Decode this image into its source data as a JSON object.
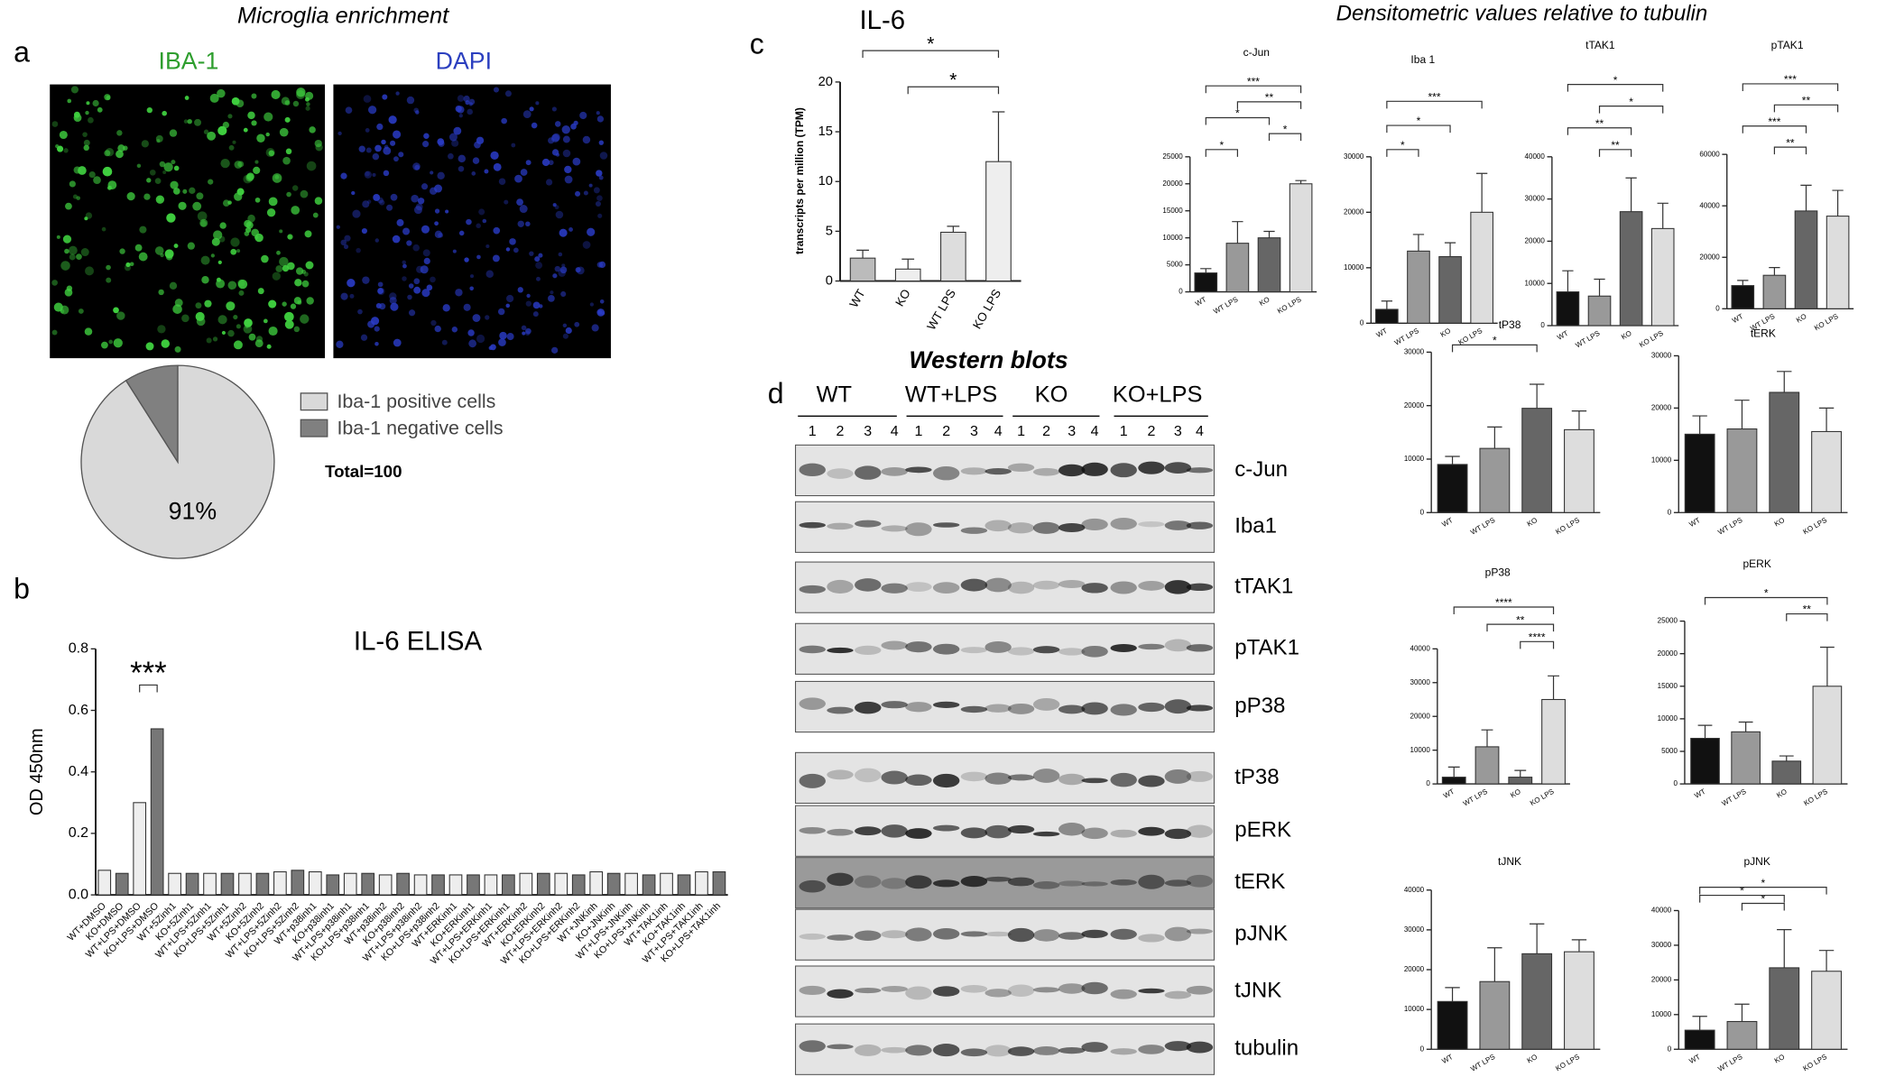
{
  "panels": {
    "a": {
      "label": "a",
      "title": "Microglia enrichment",
      "images": [
        "IBA-1",
        "DAPI"
      ]
    },
    "b": {
      "label": "b"
    },
    "c": {
      "label": "c",
      "title": "Densitometric values relative to tubulin"
    },
    "d": {
      "label": "d",
      "title": "Western blots",
      "groups": [
        "WT",
        "WT+LPS",
        "KO",
        "KO+LPS"
      ],
      "lanes": [
        "1",
        "2",
        "3",
        "4"
      ],
      "blots": [
        "c-Jun",
        "Iba1",
        "tTAK1",
        "pTAK1",
        "pP38",
        "tP38",
        "pERK",
        "tERK",
        "pJNK",
        "tJNK",
        "tubulin"
      ]
    }
  },
  "chart_data": [
    {
      "type": "pie",
      "categories": [
        "Iba-1 positive cells",
        "Iba-1 negative cells"
      ],
      "values": [
        91,
        9
      ],
      "value_labels": [
        "91%",
        null
      ],
      "colors": [
        "#d9d9d9",
        "#808080"
      ],
      "annotation": "Total=100"
    },
    {
      "type": "bar",
      "title": "IL-6 ELISA",
      "ylabel": "OD 450nm",
      "categories": [
        "WT+DMSO",
        "KO+DMSO",
        "WT+LPS+DMSO",
        "KO+LPS+DMSO",
        "WT+5Zinh1",
        "KO+5Zinh1",
        "WT+LPS+5Zinh1",
        "KO+LPS+5Zinh1",
        "WT+5Zinh2",
        "KO+5Zinh2",
        "WT+LPS+5Zinh2",
        "KO+LPS+5Zinh2",
        "WT+p38inh1",
        "KO+p38inh1",
        "WT+LPS+p38inh1",
        "KO+LPS+p38inh1",
        "WT+p38inh2",
        "KO+p38inh2",
        "WT+LPS+p38inh2",
        "KO+LPS+p38inh2",
        "WT+ERKinh1",
        "KO+ERKinh1",
        "WT+LPS+ERKinh1",
        "KO+LPS+ERKinh1",
        "WT+ERKinh2",
        "KO+ERKinh2",
        "WT+LPS+ERKinh2",
        "KO+LPS+ERKinh2",
        "WT+JNKinh",
        "KO+JNKinh",
        "WT+LPS+JNKinh",
        "KO+LPS+JNKinh",
        "WT+TAK1inh",
        "KO+TAK1inh",
        "WT+LPS+TAK1inh",
        "KO+LPS+TAK1inh"
      ],
      "values": [
        0.08,
        0.07,
        0.3,
        0.54,
        0.07,
        0.07,
        0.07,
        0.07,
        0.07,
        0.07,
        0.075,
        0.08,
        0.075,
        0.065,
        0.07,
        0.07,
        0.065,
        0.07,
        0.065,
        0.065,
        0.065,
        0.065,
        0.065,
        0.065,
        0.07,
        0.07,
        0.07,
        0.065,
        0.075,
        0.07,
        0.07,
        0.065,
        0.07,
        0.065,
        0.075,
        0.075
      ],
      "colors": [
        "#eeeeee",
        "#777777"
      ],
      "ylim": [
        0,
        0.8
      ],
      "yticks": [
        {
          "value": 0,
          "label": "0.0"
        },
        0.2,
        0.4,
        0.6,
        0.8
      ],
      "significance": [
        {
          "between": [
            2,
            3
          ],
          "label": "***"
        }
      ]
    },
    {
      "type": "bar",
      "title": "IL-6",
      "ylabel": "transcripts per million (TPM)",
      "categories": [
        "WT",
        "KO",
        "WT LPS",
        "KO LPS"
      ],
      "values": [
        2.3,
        1.2,
        4.9,
        12
      ],
      "errors": [
        0.8,
        1.0,
        0.6,
        5.0
      ],
      "colors": [
        "#bbbbbb",
        "#eeeeee",
        "#dddddd",
        "#eeeeee"
      ],
      "ylim": [
        0,
        20
      ],
      "yticks": [
        0,
        5,
        10,
        15,
        20
      ],
      "significance": [
        {
          "between": [
            1,
            3
          ],
          "label": "*"
        },
        {
          "between": [
            0,
            3
          ],
          "label": "*"
        }
      ]
    },
    {
      "type": "bar",
      "title": "c-Jun",
      "categories": [
        "WT",
        "WT LPS",
        "KO",
        "KO LPS"
      ],
      "values": [
        3500,
        9000,
        10000,
        20000
      ],
      "errors": [
        800,
        4000,
        1200,
        600
      ],
      "colors": [
        "#111111",
        "#999999",
        "#666666",
        "#dddddd"
      ],
      "ylim": [
        0,
        25000
      ],
      "yticks": [
        0,
        5000,
        10000,
        15000,
        20000,
        25000
      ],
      "significance": [
        {
          "between": [
            0,
            1
          ],
          "label": "*"
        },
        {
          "between": [
            2,
            3
          ],
          "label": "*"
        },
        {
          "between": [
            0,
            2
          ],
          "label": "*"
        },
        {
          "between": [
            1,
            3
          ],
          "label": "**"
        },
        {
          "between": [
            0,
            3
          ],
          "label": "***"
        }
      ]
    },
    {
      "type": "bar",
      "title": "Iba 1",
      "categories": [
        "WT",
        "WT LPS",
        "KO",
        "KO LPS"
      ],
      "values": [
        2500,
        13000,
        12000,
        20000
      ],
      "errors": [
        1500,
        3000,
        2500,
        7000
      ],
      "colors": [
        "#111111",
        "#999999",
        "#666666",
        "#dddddd"
      ],
      "ylim": [
        0,
        30000
      ],
      "yticks": [
        0,
        10000,
        20000,
        30000
      ],
      "significance": [
        {
          "between": [
            0,
            1
          ],
          "label": "*"
        },
        {
          "between": [
            0,
            2
          ],
          "label": "*"
        },
        {
          "between": [
            0,
            3
          ],
          "label": "***"
        }
      ]
    },
    {
      "type": "bar",
      "title": "tTAK1",
      "categories": [
        "WT",
        "WT LPS",
        "KO",
        "KO LPS"
      ],
      "values": [
        8000,
        7000,
        27000,
        23000
      ],
      "errors": [
        5000,
        4000,
        8000,
        6000
      ],
      "colors": [
        "#111111",
        "#999999",
        "#666666",
        "#dddddd"
      ],
      "ylim": [
        0,
        40000
      ],
      "yticks": [
        0,
        10000,
        20000,
        30000,
        40000
      ],
      "significance": [
        {
          "between": [
            1,
            2
          ],
          "label": "**"
        },
        {
          "between": [
            0,
            2
          ],
          "label": "**"
        },
        {
          "between": [
            1,
            3
          ],
          "label": "*"
        },
        {
          "between": [
            0,
            3
          ],
          "label": "*"
        }
      ]
    },
    {
      "type": "bar",
      "title": "pTAK1",
      "categories": [
        "WT",
        "WT LPS",
        "KO",
        "KO LPS"
      ],
      "values": [
        9000,
        13000,
        38000,
        36000
      ],
      "errors": [
        2000,
        3000,
        10000,
        10000
      ],
      "colors": [
        "#111111",
        "#999999",
        "#666666",
        "#dddddd"
      ],
      "ylim": [
        0,
        60000
      ],
      "yticks": [
        0,
        20000,
        40000,
        60000
      ],
      "significance": [
        {
          "between": [
            1,
            2
          ],
          "label": "**"
        },
        {
          "between": [
            0,
            2
          ],
          "label": "***"
        },
        {
          "between": [
            1,
            3
          ],
          "label": "**"
        },
        {
          "between": [
            0,
            3
          ],
          "label": "***"
        }
      ]
    },
    {
      "type": "bar",
      "title": "tP38",
      "categories": [
        "WT",
        "WT LPS",
        "KO",
        "KO LPS"
      ],
      "values": [
        9000,
        12000,
        19500,
        15500
      ],
      "errors": [
        1500,
        4000,
        4500,
        3500
      ],
      "colors": [
        "#111111",
        "#999999",
        "#666666",
        "#dddddd"
      ],
      "ylim": [
        0,
        30000
      ],
      "yticks": [
        0,
        10000,
        20000,
        30000
      ],
      "significance": [
        {
          "between": [
            0,
            2
          ],
          "label": "*"
        }
      ]
    },
    {
      "type": "bar",
      "title": "tERK",
      "categories": [
        "WT",
        "WT LPS",
        "KO",
        "KO LPS"
      ],
      "values": [
        15000,
        16000,
        23000,
        15500
      ],
      "errors": [
        3500,
        5500,
        4000,
        4500
      ],
      "colors": [
        "#111111",
        "#999999",
        "#666666",
        "#dddddd"
      ],
      "ylim": [
        0,
        30000
      ],
      "yticks": [
        0,
        10000,
        20000,
        30000
      ]
    },
    {
      "type": "bar",
      "title": "pP38",
      "categories": [
        "WT",
        "WT LPS",
        "KO",
        "KO LPS"
      ],
      "values": [
        2000,
        11000,
        2000,
        25000
      ],
      "errors": [
        3000,
        5000,
        2000,
        7000
      ],
      "colors": [
        "#111111",
        "#999999",
        "#666666",
        "#dddddd"
      ],
      "ylim": [
        0,
        40000
      ],
      "yticks": [
        0,
        10000,
        20000,
        30000,
        40000
      ],
      "significance": [
        {
          "between": [
            2,
            3
          ],
          "label": "****"
        },
        {
          "between": [
            1,
            3
          ],
          "label": "**"
        },
        {
          "between": [
            0,
            3
          ],
          "label": "****"
        }
      ]
    },
    {
      "type": "bar",
      "title": "pERK",
      "categories": [
        "WT",
        "WT LPS",
        "KO",
        "KO LPS"
      ],
      "values": [
        7000,
        8000,
        3500,
        15000
      ],
      "errors": [
        2000,
        1500,
        800,
        6000
      ],
      "colors": [
        "#111111",
        "#999999",
        "#666666",
        "#dddddd"
      ],
      "ylim": [
        0,
        25000
      ],
      "yticks": [
        0,
        5000,
        10000,
        15000,
        20000,
        25000
      ],
      "significance": [
        {
          "between": [
            2,
            3
          ],
          "label": "**"
        },
        {
          "between": [
            0,
            3
          ],
          "label": "*"
        }
      ]
    },
    {
      "type": "bar",
      "title": "tJNK",
      "categories": [
        "WT",
        "WT LPS",
        "KO",
        "KO LPS"
      ],
      "values": [
        12000,
        17000,
        24000,
        24500
      ],
      "errors": [
        3500,
        8500,
        7500,
        3000
      ],
      "colors": [
        "#111111",
        "#999999",
        "#666666",
        "#dddddd"
      ],
      "ylim": [
        0,
        40000
      ],
      "yticks": [
        0,
        10000,
        20000,
        30000,
        40000
      ]
    },
    {
      "type": "bar",
      "title": "pJNK",
      "categories": [
        "WT",
        "WT LPS",
        "KO",
        "KO LPS"
      ],
      "values": [
        5500,
        8000,
        23500,
        22500
      ],
      "errors": [
        4000,
        5000,
        11000,
        6000
      ],
      "colors": [
        "#111111",
        "#999999",
        "#666666",
        "#dddddd"
      ],
      "ylim": [
        0,
        40000
      ],
      "yticks": [
        0,
        10000,
        20000,
        30000,
        40000
      ],
      "significance": [
        {
          "between": [
            1,
            2
          ],
          "label": "*"
        },
        {
          "between": [
            0,
            2
          ],
          "label": "*"
        },
        {
          "between": [
            0,
            3
          ],
          "label": "*"
        }
      ]
    }
  ]
}
